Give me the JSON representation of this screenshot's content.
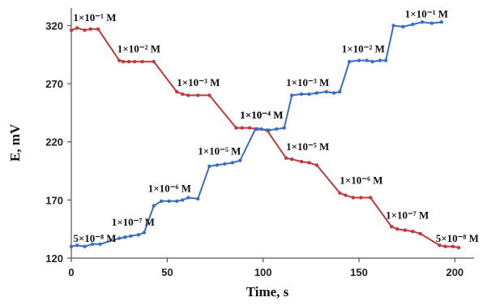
{
  "chart_data": {
    "type": "line",
    "xlabel": "Time, s",
    "ylabel": "E, mV",
    "xlim": [
      0,
      210
    ],
    "ylim": [
      120,
      335
    ],
    "x_ticks": [
      0,
      50,
      100,
      150,
      200
    ],
    "y_ticks": [
      120,
      170,
      220,
      270,
      320
    ],
    "grid": false,
    "series": [
      {
        "color": "#c0393b",
        "x": [
          0,
          3,
          7,
          10,
          14,
          25,
          27,
          30,
          33,
          37,
          43,
          55,
          58,
          61,
          66,
          72,
          86,
          89,
          93,
          97,
          102,
          112,
          115,
          120,
          124,
          128,
          140,
          143,
          147,
          151,
          156,
          167,
          170,
          174,
          178,
          182,
          192,
          195,
          199,
          202
        ],
        "y": [
          316,
          318,
          316,
          317,
          317,
          290,
          289,
          289,
          289,
          289,
          289,
          263,
          261,
          260,
          260,
          260,
          232,
          232,
          232,
          231,
          230,
          206,
          205,
          203,
          202,
          200,
          176,
          174,
          172,
          172,
          172,
          147,
          145,
          144,
          143,
          141,
          131,
          130,
          130,
          129
        ]
      },
      {
        "color": "#3a6fc0",
        "x": [
          0,
          3,
          7,
          11,
          15,
          25,
          28,
          31,
          35,
          38,
          43,
          47,
          51,
          55,
          58,
          61,
          66,
          72,
          76,
          80,
          84,
          88,
          96,
          99,
          103,
          107,
          111,
          115,
          120,
          124,
          128,
          133,
          137,
          140,
          145,
          150,
          154,
          157,
          161,
          164,
          168,
          173,
          178,
          183,
          188,
          193
        ],
        "y": [
          130,
          131,
          130,
          132,
          132,
          137,
          138,
          139,
          140,
          142,
          165,
          169,
          169,
          169,
          170,
          172,
          171,
          199,
          200,
          201,
          202,
          204,
          231,
          231,
          230,
          231,
          232,
          260,
          261,
          261,
          262,
          263,
          262,
          263,
          289,
          290,
          290,
          289,
          290,
          290,
          320,
          319,
          321,
          323,
          322,
          323
        ]
      }
    ],
    "annotations": [
      {
        "text": "1×10⁻¹ M",
        "x": 1,
        "y": 324
      },
      {
        "text": "1×10⁻² M",
        "x": 24,
        "y": 297
      },
      {
        "text": "1×10⁻³ M",
        "x": 55,
        "y": 268
      },
      {
        "text": "1×10⁻⁴ M",
        "x": 88,
        "y": 240
      },
      {
        "text": "1×10⁻⁵ M",
        "x": 112,
        "y": 213
      },
      {
        "text": "1×10⁻⁶ M",
        "x": 140,
        "y": 184
      },
      {
        "text": "1×10⁻⁷ M",
        "x": 164,
        "y": 154
      },
      {
        "text": "5×10⁻⁸ M",
        "x": 190,
        "y": 134
      },
      {
        "text": "5×10⁻⁸ M",
        "x": 1,
        "y": 134
      },
      {
        "text": "1×10⁻⁷ M",
        "x": 21,
        "y": 148
      },
      {
        "text": "1×10⁻⁶ M",
        "x": 40,
        "y": 177
      },
      {
        "text": "1×10⁻⁵ M",
        "x": 66,
        "y": 209
      },
      {
        "text": "1×10⁻⁴ M",
        "x": 88,
        "y": 240
      },
      {
        "text": "1×10⁻³ M",
        "x": 112,
        "y": 268
      },
      {
        "text": "1×10⁻² M",
        "x": 141,
        "y": 297
      },
      {
        "text": "1×10⁻¹ M",
        "x": 174,
        "y": 327
      }
    ]
  }
}
